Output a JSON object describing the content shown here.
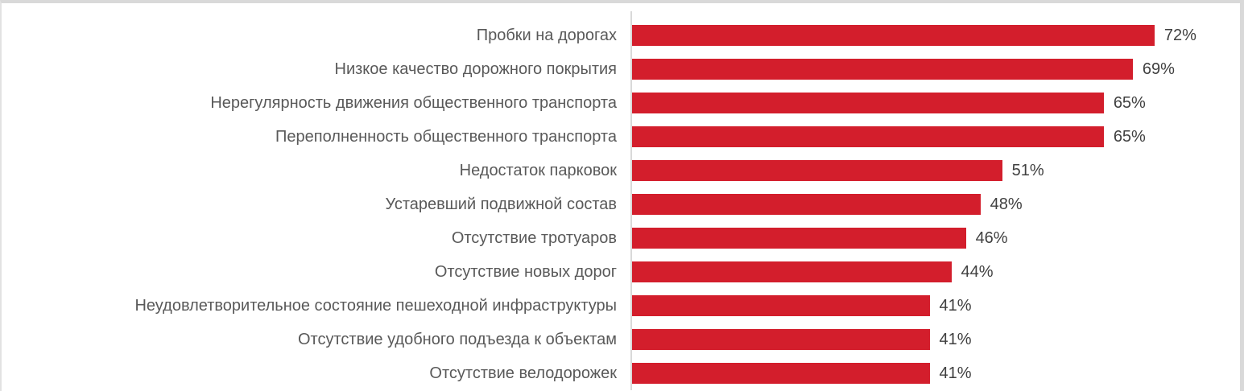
{
  "chart_data": {
    "type": "bar",
    "orientation": "horizontal",
    "title": "",
    "xlabel": "",
    "ylabel": "",
    "categories": [
      "Пробки на дорогах",
      "Низкое качество дорожного покрытия",
      "Нерегулярность движения общественного транспорта",
      "Переполненность общественного транспорта",
      "Недостаток парковок",
      "Устаревший подвижной состав",
      "Отсутствие тротуаров",
      "Отсутствие новых дорог",
      "Неудовлетворительное состояние пешеходной инфраструктуры",
      "Отсутствие удобного подъезда к объектам",
      "Отсутствие велодорожек"
    ],
    "values": [
      72,
      69,
      65,
      65,
      51,
      48,
      46,
      44,
      41,
      41,
      41
    ],
    "value_labels": [
      "72%",
      "69%",
      "65%",
      "65%",
      "51%",
      "48%",
      "46%",
      "44%",
      "41%",
      "41%",
      "41%"
    ],
    "xlim": [
      0,
      80
    ],
    "grid": false,
    "legend": false,
    "colors": {
      "bar": "#d31e2c",
      "category_label": "#595959",
      "value_label": "#404040",
      "axis_line": "#d9d9d9",
      "frame_border": "#d9d9d9"
    }
  }
}
